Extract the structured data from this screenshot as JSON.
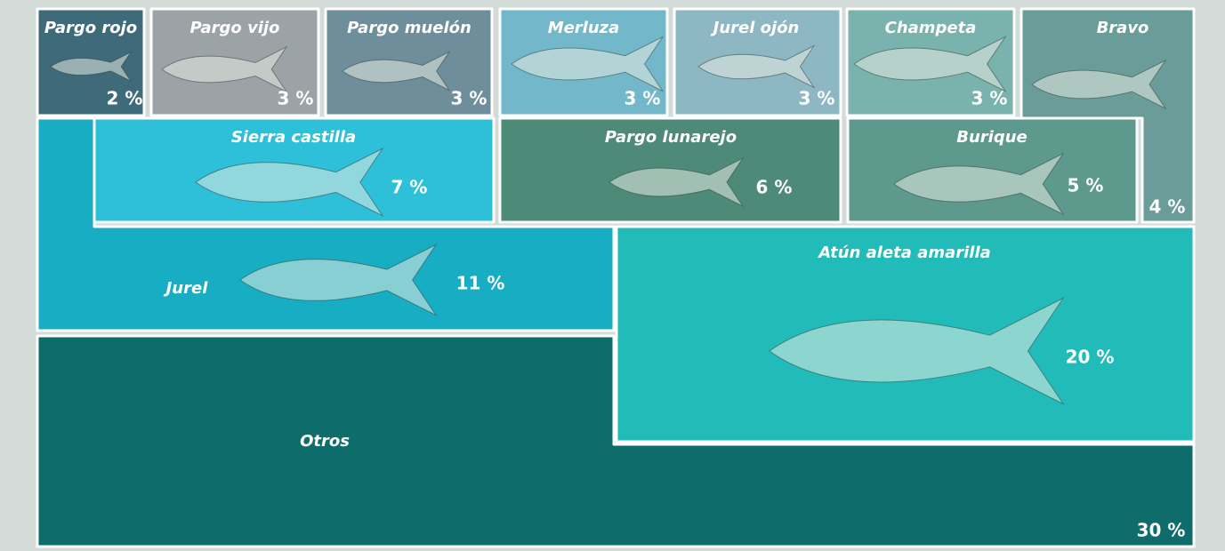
{
  "chart_data": {
    "type": "treemap",
    "categories": [
      "Pargo rojo",
      "Pargo vijo",
      "Pargo muelón",
      "Merluza",
      "Jurel ojón",
      "Champeta",
      "Bravo",
      "Sierra castilla",
      "Pargo lunarejo",
      "Burique",
      "Jurel",
      "Atún aleta amarilla",
      "Otros"
    ],
    "values": [
      2,
      3,
      3,
      3,
      3,
      3,
      4,
      7,
      6,
      5,
      11,
      20,
      30
    ],
    "value_labels": [
      "2 %",
      "3 %",
      "3 %",
      "3 %",
      "3 %",
      "3 %",
      "4 %",
      "7 %",
      "6 %",
      "5 %",
      "11 %",
      "20 %",
      "30 %"
    ],
    "colors": [
      "#3f6a7a",
      "#9ca3a7",
      "#6f8e9c",
      "#73b8ca",
      "#8eb7c4",
      "#7ab2ad",
      "#6a9d99",
      "#2ebfd9",
      "#4e8a78",
      "#5d9a8d",
      "#17aec3",
      "#21bcb9",
      "#0e6d6b"
    ]
  }
}
